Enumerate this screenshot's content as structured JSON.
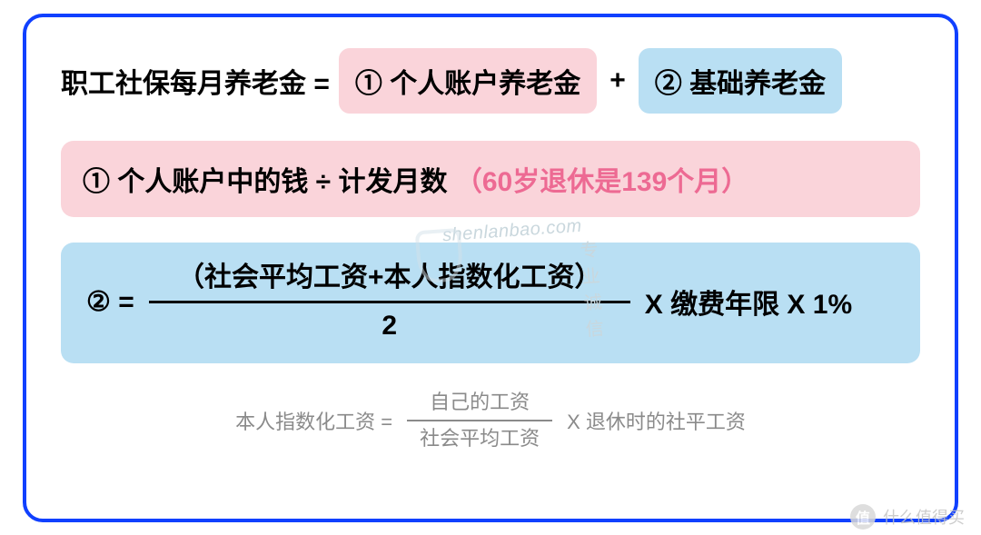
{
  "colors": {
    "frame_border": "#1040ff",
    "pink_bg": "#fad4da",
    "blue_bg": "#b9dff3",
    "pink_text": "#ed6a93",
    "gray_text": "#8a8a8a",
    "watermark": "#c9d7dd"
  },
  "row1": {
    "lhs": "职工社保每月养老金 = ",
    "term1": "① 个人账户养老金",
    "plus": " + ",
    "term2": "② 基础养老金"
  },
  "row2": {
    "main": "① 个人账户中的钱 ÷ 计发月数",
    "note": "（60岁退休是139个月）"
  },
  "row3": {
    "lhs": "② = ",
    "frac_top": "（社会平均工资+本人指数化工资）",
    "frac_bot": "2",
    "tail": " X  缴费年限 X 1%"
  },
  "row4": {
    "lhs": "本人指数化工资  = ",
    "frac_top": "自己的工资",
    "frac_bot": "社会平均工资",
    "tail": " X  退休时的社平工资"
  },
  "watermark": {
    "url": "shenlanbao.com",
    "cn": "专业     诚信"
  },
  "footer": {
    "badge": "值",
    "text": "什么值得买"
  }
}
